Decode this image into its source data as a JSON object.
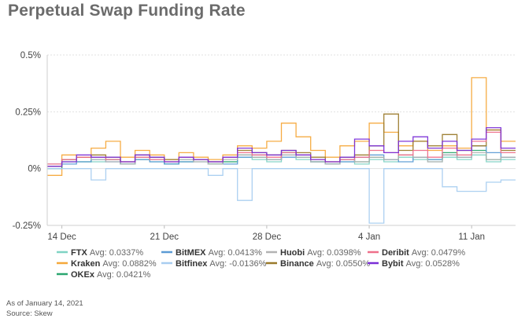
{
  "chart_data": {
    "type": "line",
    "title": "Perpetual Swap Funding Rate",
    "ylabel": "",
    "xlabel": "",
    "ylim": [
      -0.25,
      0.5
    ],
    "xlim": [
      0,
      32
    ],
    "y_ticks": [
      {
        "value": 0.5,
        "label": "0.5%"
      },
      {
        "value": 0.25,
        "label": "0.25%"
      },
      {
        "value": 0,
        "label": "0%"
      },
      {
        "value": -0.25,
        "label": "-0.25%"
      }
    ],
    "x_ticks": [
      {
        "value": 1,
        "label": "14 Dec"
      },
      {
        "value": 8,
        "label": "21 Dec"
      },
      {
        "value": 15,
        "label": "28 Dec"
      },
      {
        "value": 22,
        "label": "4 Jan"
      },
      {
        "value": 29,
        "label": "11 Jan"
      }
    ],
    "grid": "horizontal",
    "legend_position": "bottom",
    "step_days": 1,
    "series": [
      {
        "name": "FTX",
        "avg": "Avg: 0.0337%",
        "color": "#7fd3c4",
        "values": [
          0.01,
          0.03,
          0.05,
          0.03,
          0.04,
          0.02,
          0.05,
          0.03,
          0.02,
          0.04,
          0.03,
          0.02,
          0.03,
          0.05,
          0.04,
          0.03,
          0.06,
          0.04,
          0.03,
          0.02,
          0.03,
          0.02,
          0.04,
          0.03,
          0.05,
          0.04,
          0.03,
          0.05,
          0.04,
          0.06,
          0.03,
          0.04
        ]
      },
      {
        "name": "Kraken",
        "avg": "Avg: 0.0882%",
        "color": "#f5a83a",
        "values": [
          -0.03,
          0.06,
          0.05,
          0.09,
          0.12,
          0.05,
          0.08,
          0.06,
          0.04,
          0.07,
          0.05,
          0.04,
          0.06,
          0.1,
          0.09,
          0.12,
          0.2,
          0.14,
          0.08,
          0.05,
          0.1,
          0.12,
          0.2,
          0.16,
          0.1,
          0.12,
          0.08,
          0.1,
          0.09,
          0.4,
          0.17,
          0.12
        ]
      },
      {
        "name": "OKEx",
        "avg": "Avg: 0.0421%",
        "color": "#2aa66f",
        "values": [
          0.0,
          0.04,
          0.03,
          0.05,
          0.04,
          0.02,
          0.04,
          0.05,
          0.02,
          0.03,
          0.04,
          0.02,
          0.03,
          0.06,
          0.05,
          0.04,
          0.07,
          0.05,
          0.03,
          0.02,
          0.04,
          0.03,
          0.05,
          0.04,
          0.06,
          0.05,
          0.04,
          0.07,
          0.05,
          0.08,
          0.04,
          0.05
        ]
      },
      {
        "name": "BitMEX",
        "avg": "Avg: 0.0413%",
        "color": "#5b9bd5",
        "values": [
          0.01,
          0.02,
          0.03,
          0.04,
          0.03,
          0.02,
          0.04,
          0.03,
          0.02,
          0.03,
          0.04,
          0.03,
          0.02,
          0.05,
          0.06,
          0.04,
          0.05,
          0.06,
          0.03,
          0.02,
          0.03,
          0.05,
          0.06,
          0.04,
          0.03,
          0.05,
          0.04,
          0.06,
          0.05,
          0.1,
          0.07,
          0.05
        ]
      },
      {
        "name": "Bitfinex",
        "avg": "Avg: -0.0136%",
        "color": "#a8cdf0",
        "values": [
          0.0,
          0.0,
          0.0,
          -0.05,
          0.0,
          0.0,
          0.0,
          0.0,
          0.0,
          0.0,
          0.0,
          -0.03,
          0.0,
          -0.14,
          0.0,
          0.0,
          0.0,
          0.0,
          0.0,
          0.0,
          0.0,
          0.0,
          -0.24,
          0.0,
          0.0,
          0.0,
          0.0,
          -0.08,
          -0.1,
          -0.1,
          -0.06,
          -0.05
        ]
      },
      {
        "name": "Huobi",
        "avg": "Avg: 0.0398%",
        "color": "#b3b3b3",
        "values": [
          0.02,
          0.03,
          0.05,
          0.04,
          0.03,
          0.02,
          0.05,
          0.04,
          0.03,
          0.04,
          0.03,
          0.02,
          0.04,
          0.06,
          0.05,
          0.04,
          0.06,
          0.05,
          0.03,
          0.02,
          0.04,
          0.03,
          0.05,
          0.04,
          0.06,
          0.05,
          0.03,
          0.06,
          0.05,
          0.07,
          0.04,
          0.05
        ]
      },
      {
        "name": "Binance",
        "avg": "Avg: 0.0550%",
        "color": "#9a7a2b",
        "values": [
          0.01,
          0.04,
          0.05,
          0.06,
          0.05,
          0.03,
          0.06,
          0.05,
          0.04,
          0.05,
          0.04,
          0.03,
          0.05,
          0.08,
          0.07,
          0.06,
          0.08,
          0.07,
          0.05,
          0.03,
          0.05,
          0.06,
          0.1,
          0.24,
          0.08,
          0.12,
          0.1,
          0.15,
          0.08,
          0.1,
          0.17,
          0.08
        ]
      },
      {
        "name": "Deribit",
        "avg": "Avg: 0.0479%",
        "color": "#ee6f8a",
        "values": [
          0.02,
          0.04,
          0.05,
          0.05,
          0.04,
          0.03,
          0.05,
          0.04,
          0.03,
          0.05,
          0.04,
          0.03,
          0.05,
          0.07,
          0.06,
          0.05,
          0.07,
          0.06,
          0.04,
          0.03,
          0.04,
          0.05,
          0.08,
          0.07,
          0.06,
          0.08,
          0.05,
          0.09,
          0.06,
          0.12,
          0.16,
          0.07
        ]
      },
      {
        "name": "Bybit",
        "avg": "Avg: 0.0528%",
        "color": "#7a2ed6",
        "values": [
          0.01,
          0.03,
          0.06,
          0.05,
          0.05,
          0.03,
          0.06,
          0.05,
          0.03,
          0.05,
          0.04,
          0.03,
          0.05,
          0.09,
          0.07,
          0.06,
          0.08,
          0.06,
          0.04,
          0.03,
          0.05,
          0.13,
          0.1,
          0.07,
          0.12,
          0.14,
          0.09,
          0.12,
          0.08,
          0.13,
          0.18,
          0.09
        ]
      }
    ]
  },
  "footnote": {
    "as_of": "As of January 14, 2021",
    "source": "Source: Skew"
  }
}
